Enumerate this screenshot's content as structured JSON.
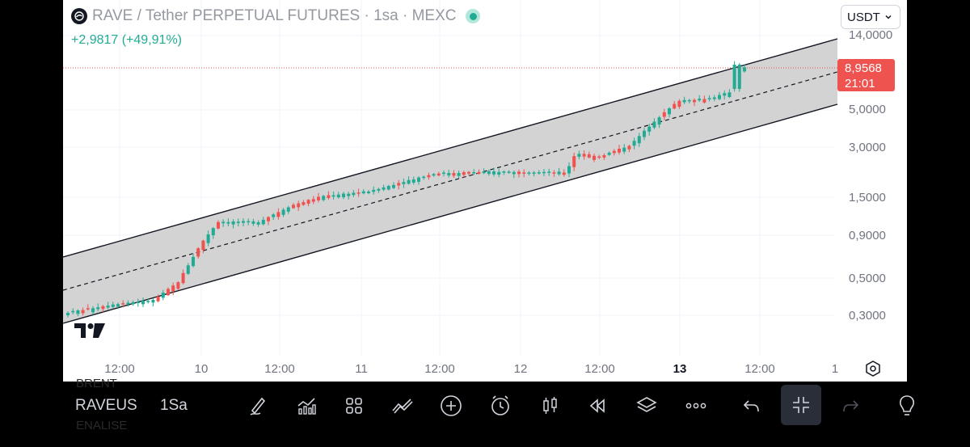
{
  "legend": {
    "title": "RAVE / Tether PERPETUAL FUTURES · 1sa · MEXC",
    "change": "+2,9817 (+49,91%)",
    "logo_icon": "rave-coin-logo-icon",
    "status_icon": "market-open-dot-icon"
  },
  "currency": {
    "selected": "USDT"
  },
  "price_label": {
    "price": "8,9568",
    "countdown": "21:01"
  },
  "y_axis": {
    "labels": [
      "14,0000",
      "5,0000",
      "3,0000",
      "1,5000",
      "0,9000",
      "0,5000",
      "0,3000"
    ]
  },
  "x_axis": {
    "labels": [
      "12:00",
      "10",
      "12:00",
      "11",
      "12:00",
      "12",
      "12:00",
      "13",
      "12:00",
      "1"
    ]
  },
  "toolbar": {
    "symbol": "RAVEUS",
    "interval": "1Sa",
    "ghost_above": "BRENT",
    "ghost_below": "ENALISE",
    "icons": [
      "drawing-brush-icon",
      "indicators-icon",
      "templates-icon",
      "compare-icon",
      "add-icon",
      "alert-icon",
      "chart-type-candles-icon",
      "replay-icon",
      "layers-icon",
      "more-icon",
      "undo-icon",
      "exit-fullscreen-icon",
      "redo-icon",
      "ideas-lightbulb-icon"
    ]
  },
  "colors": {
    "up": "#22ab94",
    "down": "#ef5350",
    "channel_fill": "#d3d3d3",
    "channel_line": "#131722",
    "toolbar_bg": "#000000",
    "chart_bg": "#ffffff"
  },
  "chart_data": {
    "type": "candlestick",
    "symbol": "RAVE / Tether PERPETUAL FUTURES",
    "exchange": "MEXC",
    "interval": "1sa",
    "y_scale": "log",
    "last_price": 8.9568,
    "change": 2.9817,
    "change_pct": 49.91,
    "channel": {
      "type": "parallel-channel",
      "shape": "ascending"
    },
    "trend": "ascending channel from ~0.3 to ~9"
  }
}
